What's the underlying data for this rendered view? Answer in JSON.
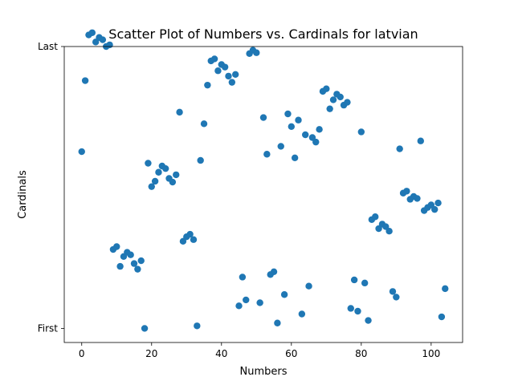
{
  "chart_data": {
    "type": "scatter",
    "title": "Scatter Plot of Numbers vs. Cardinals for latvian",
    "xlabel": "Numbers",
    "ylabel": "Cardinals",
    "xlim": [
      -5,
      109
    ],
    "ylim": [
      -5,
      100
    ],
    "x_ticks": [
      0,
      20,
      40,
      60,
      80,
      100
    ],
    "y_ticks": [
      {
        "value": 0,
        "label": "First"
      },
      {
        "value": 100,
        "label": "Last"
      }
    ],
    "grid": false,
    "marker_color": "#1f77b4",
    "points": [
      [
        0,
        62.7
      ],
      [
        1,
        87.9
      ],
      [
        2,
        104.1
      ],
      [
        3,
        104.9
      ],
      [
        4,
        101.6
      ],
      [
        5,
        103.2
      ],
      [
        6,
        102.4
      ],
      [
        7,
        100.0
      ],
      [
        8,
        100.6
      ],
      [
        9,
        28.0
      ],
      [
        10,
        29.0
      ],
      [
        11,
        22.0
      ],
      [
        12,
        25.5
      ],
      [
        13,
        27.0
      ],
      [
        14,
        26.1
      ],
      [
        15,
        23.0
      ],
      [
        16,
        21.0
      ],
      [
        17,
        24.0
      ],
      [
        18,
        0.0
      ],
      [
        19,
        58.6
      ],
      [
        20,
        50.3
      ],
      [
        21,
        52.2
      ],
      [
        22,
        55.4
      ],
      [
        23,
        57.6
      ],
      [
        24,
        56.7
      ],
      [
        25,
        53.2
      ],
      [
        26,
        51.9
      ],
      [
        27,
        54.5
      ],
      [
        28,
        76.7
      ],
      [
        29,
        30.9
      ],
      [
        30,
        32.5
      ],
      [
        31,
        33.4
      ],
      [
        32,
        31.5
      ],
      [
        33,
        0.9
      ],
      [
        34,
        59.6
      ],
      [
        35,
        72.6
      ],
      [
        36,
        86.3
      ],
      [
        37,
        94.9
      ],
      [
        38,
        95.6
      ],
      [
        39,
        91.4
      ],
      [
        40,
        93.6
      ],
      [
        41,
        92.7
      ],
      [
        42,
        89.5
      ],
      [
        43,
        87.3
      ],
      [
        44,
        90.1
      ],
      [
        45,
        8.0
      ],
      [
        46,
        18.2
      ],
      [
        47,
        10.1
      ],
      [
        48,
        97.5
      ],
      [
        49,
        98.7
      ],
      [
        50,
        97.8
      ],
      [
        51,
        9.1
      ],
      [
        52,
        74.8
      ],
      [
        53,
        61.8
      ],
      [
        54,
        19.1
      ],
      [
        55,
        20.1
      ],
      [
        56,
        1.9
      ],
      [
        57,
        64.6
      ],
      [
        58,
        12.0
      ],
      [
        59,
        76.1
      ],
      [
        60,
        71.6
      ],
      [
        61,
        60.5
      ],
      [
        62,
        73.9
      ],
      [
        63,
        5.1
      ],
      [
        64,
        68.7
      ],
      [
        65,
        15.0
      ],
      [
        66,
        67.7
      ],
      [
        67,
        66.1
      ],
      [
        68,
        70.6
      ],
      [
        69,
        84.1
      ],
      [
        70,
        85.0
      ],
      [
        71,
        77.9
      ],
      [
        72,
        81.1
      ],
      [
        73,
        83.1
      ],
      [
        74,
        82.1
      ],
      [
        75,
        79.2
      ],
      [
        76,
        80.2
      ],
      [
        77,
        7.1
      ],
      [
        78,
        17.2
      ],
      [
        79,
        6.1
      ],
      [
        80,
        69.7
      ],
      [
        81,
        16.1
      ],
      [
        82,
        2.8
      ],
      [
        83,
        38.6
      ],
      [
        84,
        39.6
      ],
      [
        85,
        35.4
      ],
      [
        86,
        37.0
      ],
      [
        87,
        36.1
      ],
      [
        88,
        34.5
      ],
      [
        89,
        13.1
      ],
      [
        90,
        11.1
      ],
      [
        91,
        63.7
      ],
      [
        92,
        48.0
      ],
      [
        93,
        48.7
      ],
      [
        94,
        45.8
      ],
      [
        95,
        46.8
      ],
      [
        96,
        46.1
      ],
      [
        97,
        66.5
      ],
      [
        98,
        41.8
      ],
      [
        99,
        42.9
      ],
      [
        100,
        43.8
      ],
      [
        101,
        42.2
      ],
      [
        102,
        44.5
      ],
      [
        103,
        4.1
      ],
      [
        104,
        14.1
      ]
    ]
  }
}
